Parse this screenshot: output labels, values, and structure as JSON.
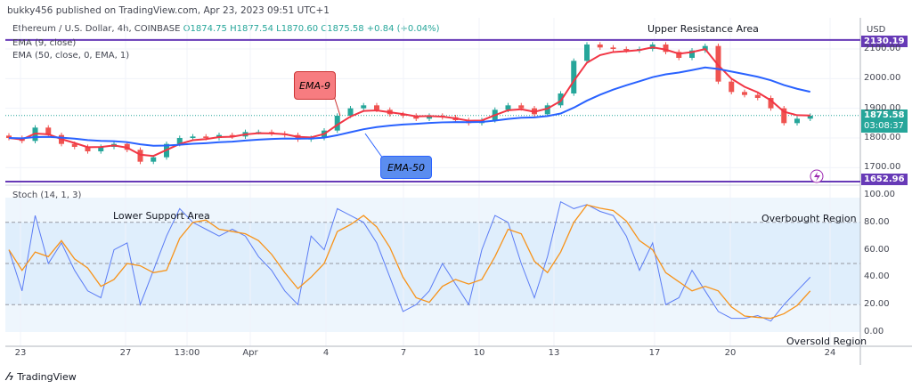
{
  "header": {
    "publisher": "bukky456 published on TradingView.com, Apr 23, 2023 09:51 UTC+1"
  },
  "legend": {
    "symbol": "Ethereum / U.S. Dollar, 4h, COINBASE",
    "open": "O1874.75",
    "high": "H1877.54",
    "low": "L1870.60",
    "close": "C1875.58",
    "change": "+0.84 (+0.04%)",
    "ema9": "EMA (9, close)",
    "ema50": "EMA (50, close, 0, EMA, 1)",
    "stoch": "Stoch (14, 1, 3)"
  },
  "axis": {
    "currency": "USD",
    "price_ticks": [
      "2100.00",
      "2000.00",
      "1900.00",
      "1800.00",
      "1700.00"
    ],
    "stoch_ticks": [
      "100.00",
      "80.00",
      "60.00",
      "40.00",
      "20.00",
      "0.00"
    ],
    "resistance_label": "2130.19",
    "support_label": "1652.96",
    "last_price": "1875.58",
    "countdown": "03:08:37",
    "time_ticks": [
      "23",
      "27",
      "13:00",
      "Apr",
      "4",
      "7",
      "10",
      "13",
      "17",
      "20",
      "24"
    ]
  },
  "annotations": {
    "upper": "Upper Resistance Area",
    "lower": "Lower Support Area",
    "overbought": "Overbought Region",
    "oversold": "Oversold Region",
    "ema9": "EMA-9",
    "ema50": "EMA-50"
  },
  "footer": {
    "brand": "TradingView"
  },
  "colors": {
    "up": "#26a69a",
    "down": "#ef5350",
    "ema9": "#f23645",
    "ema50": "#2962ff",
    "level": "#673ab7",
    "stochK": "#5b7cf5",
    "stochD": "#f7931a"
  },
  "chart_data": {
    "type": "candlestick",
    "price_range": [
      1640,
      2160
    ],
    "resistance": 2130.19,
    "support": 1652.96,
    "close": [
      1800,
      1790,
      1835,
      1810,
      1780,
      1770,
      1755,
      1770,
      1780,
      1760,
      1720,
      1735,
      1780,
      1800,
      1805,
      1800,
      1810,
      1805,
      1820,
      1820,
      1815,
      1810,
      1795,
      1800,
      1825,
      1875,
      1900,
      1910,
      1895,
      1880,
      1875,
      1865,
      1875,
      1870,
      1860,
      1850,
      1860,
      1895,
      1910,
      1900,
      1880,
      1910,
      1950,
      2060,
      2115,
      2105,
      2100,
      2095,
      2100,
      2115,
      2090,
      2070,
      2095,
      2110,
      1990,
      1955,
      1945,
      1935,
      1900,
      1850,
      1865,
      1875
    ],
    "stoch_k": [
      60,
      30,
      85,
      50,
      65,
      45,
      30,
      25,
      60,
      65,
      20,
      45,
      70,
      90,
      80,
      75,
      70,
      75,
      70,
      55,
      45,
      30,
      20,
      70,
      60,
      90,
      85,
      80,
      65,
      40,
      15,
      20,
      30,
      50,
      35,
      20,
      60,
      85,
      80,
      50,
      25,
      55,
      95,
      90,
      93,
      88,
      85,
      70,
      45,
      65,
      20,
      25,
      45,
      30,
      15,
      10,
      10,
      12,
      8,
      20,
      30,
      40
    ],
    "stoch_levels": [
      80,
      50,
      20
    ]
  }
}
